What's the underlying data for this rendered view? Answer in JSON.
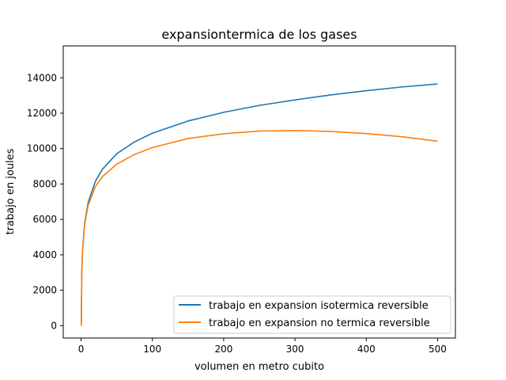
{
  "chart_data": {
    "type": "line",
    "title": "expansiontermica de los gases",
    "xlabel": "volumen en metro cubito",
    "ylabel": "trabajo en joules",
    "xlim": [
      -25,
      525
    ],
    "ylim": [
      -700,
      15800
    ],
    "xticks": [
      0,
      100,
      200,
      300,
      400,
      500
    ],
    "yticks": [
      0,
      2000,
      4000,
      6000,
      8000,
      10000,
      12000,
      14000
    ],
    "grid": false,
    "legend_position": "lower-right",
    "series": [
      {
        "name": "trabajo en expansion isotermica reversible",
        "color": "#1f77b4",
        "x": [
          0.3,
          1,
          2,
          5,
          10,
          20,
          30,
          50,
          75,
          100,
          150,
          200,
          250,
          300,
          350,
          400,
          450,
          500
        ],
        "y": [
          0,
          2970,
          4190,
          5790,
          6960,
          8150,
          8840,
          9710,
          10380,
          10870,
          11560,
          12050,
          12440,
          12750,
          13030,
          13270,
          13480,
          13650
        ]
      },
      {
        "name": "trabajo en expansion no termica reversible",
        "color": "#ff7f0e",
        "x": [
          0.3,
          1,
          2,
          5,
          10,
          20,
          30,
          50,
          75,
          100,
          150,
          200,
          250,
          300,
          350,
          400,
          450,
          500
        ],
        "y": [
          0,
          2960,
          4170,
          5720,
          6800,
          7850,
          8420,
          9120,
          9670,
          10060,
          10570,
          10840,
          10990,
          11020,
          10970,
          10850,
          10670,
          10420
        ]
      }
    ]
  }
}
